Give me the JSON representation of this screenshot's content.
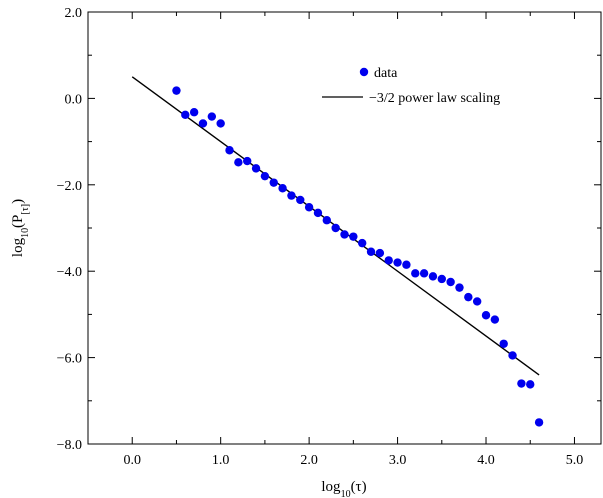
{
  "chart_data": {
    "type": "scatter",
    "xlabel": "log10(τ)",
    "ylabel": "log10(P[τ])",
    "xlim": [
      -0.5,
      5.3
    ],
    "ylim": [
      -8.0,
      2.0
    ],
    "xticks": [
      0.0,
      1.0,
      2.0,
      3.0,
      4.0,
      5.0
    ],
    "xtick_labels": [
      "0.0",
      "1.0",
      "2.0",
      "3.0",
      "4.0",
      "5.0"
    ],
    "yticks": [
      -8.0,
      -6.0,
      -4.0,
      -2.0,
      0.0,
      2.0
    ],
    "ytick_labels": [
      "−8.0",
      "−6.0",
      "−4.0",
      "−2.0",
      "0.0",
      "2.0"
    ],
    "grid": false,
    "legend_position": "top-right",
    "series": [
      {
        "name": "data",
        "kind": "scatter",
        "color": "#0000ee",
        "x": [
          0.5,
          0.6,
          0.7,
          0.8,
          0.9,
          1.0,
          1.1,
          1.2,
          1.3,
          1.4,
          1.5,
          1.6,
          1.7,
          1.8,
          1.9,
          2.0,
          2.1,
          2.2,
          2.3,
          2.4,
          2.5,
          2.6,
          2.7,
          2.8,
          2.9,
          3.0,
          3.1,
          3.2,
          3.3,
          3.4,
          3.5,
          3.6,
          3.7,
          3.8,
          3.9,
          4.0,
          4.1,
          4.2,
          4.3,
          4.4,
          4.5,
          4.6
        ],
        "y": [
          0.18,
          -0.38,
          -0.32,
          -0.58,
          -0.42,
          -0.58,
          -1.2,
          -1.48,
          -1.45,
          -1.62,
          -1.8,
          -1.95,
          -2.08,
          -2.25,
          -2.35,
          -2.52,
          -2.65,
          -2.82,
          -3.0,
          -3.15,
          -3.2,
          -3.35,
          -3.55,
          -3.58,
          -3.75,
          -3.8,
          -3.85,
          -4.05,
          -4.05,
          -4.12,
          -4.18,
          -4.25,
          -4.38,
          -4.6,
          -4.7,
          -5.02,
          -5.12,
          -5.68,
          -5.95,
          -6.6,
          -6.62,
          -7.5
        ]
      },
      {
        "name": "−3/2 power law scaling",
        "kind": "line",
        "color": "#000000",
        "x": [
          0.0,
          4.6
        ],
        "y": [
          0.5,
          -6.4
        ]
      }
    ]
  }
}
